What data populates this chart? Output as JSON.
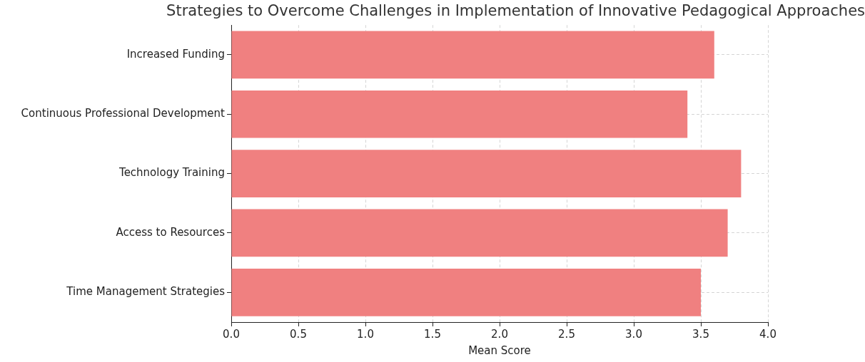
{
  "chart_data": {
    "type": "bar",
    "orientation": "horizontal",
    "title": "Strategies to Overcome Challenges in Implementation of Innovative Pedagogical Approaches",
    "xlabel": "Mean Score",
    "categories": [
      "Increased Funding",
      "Continuous Professional Development",
      "Technology Training",
      "Access to Resources",
      "Time Management Strategies"
    ],
    "values": [
      3.6,
      3.4,
      3.8,
      3.7,
      3.5
    ],
    "color": "#f08080",
    "xlim": [
      0,
      4
    ],
    "xticks": [
      {
        "value": 0,
        "label": "0.0"
      },
      0.5,
      {
        "value": 1,
        "label": "1.0"
      },
      1.5,
      {
        "value": 2,
        "label": "2.0"
      },
      2.5,
      {
        "value": 3,
        "label": "3.0"
      },
      3.5,
      {
        "value": 4,
        "label": "4.0"
      }
    ],
    "grid": true,
    "legend": false
  }
}
